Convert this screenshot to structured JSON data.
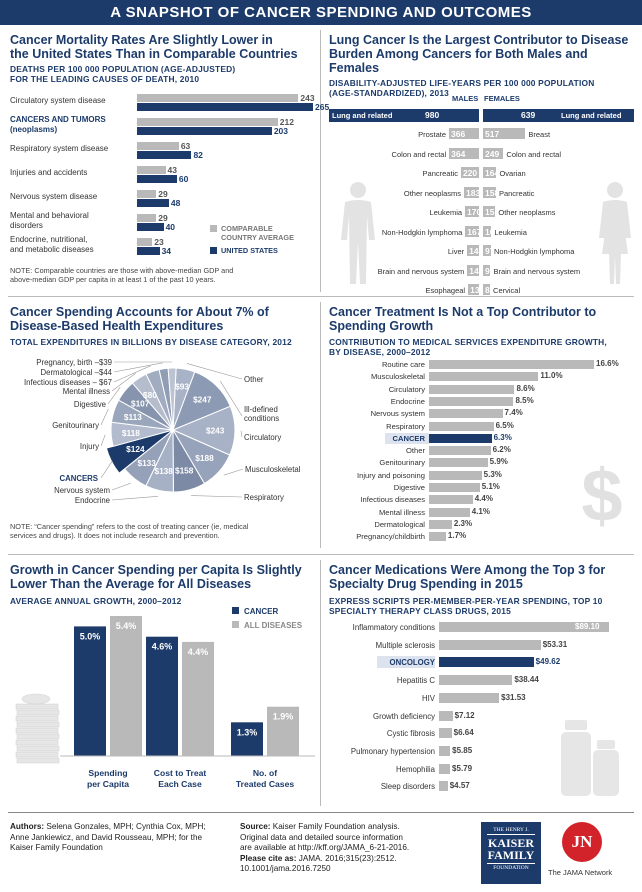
{
  "header": {
    "title": "A SNAPSHOT OF CANCER SPENDING AND OUTCOMES"
  },
  "colors": {
    "navy": "#1c3b6b",
    "gray": "#b9b9b9",
    "panelLine": "#bbbbbb"
  },
  "panel1": {
    "title_line1": "Cancer Mortality Rates Are Slightly Lower in",
    "title_line2": "the United States Than in Comparable Countries",
    "subtitle_line1": "DEATHS PER 100 000 POPULATION (AGE-ADJUSTED)",
    "subtitle_line2": "FOR THE LEADING CAUSES OF DEATH, 2010",
    "note_line1": "NOTE: Comparable countries are those with above-median GDP and",
    "note_line2": "above-median GDP per capita in at least 1 of the past 10 years."
  },
  "panel2": {
    "title_line1": "Lung Cancer Is the Largest Contributor to Disease",
    "title_line2": "Burden Among Cancers for Both Males and Females",
    "subtitle_line1": "DISABILITY-ADJUSTED LIFE-YEARS PER 100 000 POPULATION",
    "subtitle_line2": "(AGE-STANDARDIZED), 2013",
    "males_label": "MALES",
    "females_label": "FEMALES"
  },
  "panel3": {
    "title_line1": "Cancer Spending Accounts for About 7% of",
    "title_line2": "Disease-Based Health Expenditures",
    "subtitle": "TOTAL EXPENDITURES IN BILLIONS BY DISEASE CATEGORY, 2012",
    "note_line1": "NOTE: “Cancer spending” refers to the cost of treating cancer (ie, medical",
    "note_line2": "services and drugs). It does not include research and prevention."
  },
  "panel4": {
    "title_line1": "Cancer Treatment Is Not a Top Contributor to",
    "title_line2": "Spending Growth",
    "subtitle_line1": "CONTRIBUTION TO MEDICAL SERVICES EXPENDITURE GROWTH,",
    "subtitle_line2": "BY DISEASE, 2000–2012"
  },
  "panel5": {
    "title_line1": "Growth in Cancer Spending per Capita Is Slightly",
    "title_line2": "Lower Than the Average for All Diseases",
    "subtitle": "AVERAGE ANNUAL GROWTH, 2000–2012"
  },
  "panel6": {
    "title_line1": "Cancer Medications Were Among the Top 3 for",
    "title_line2": "Specialty Drug Spending in 2015",
    "subtitle_line1": "EXPRESS SCRIPTS PER-MEMBER-PER-YEAR SPENDING, TOP 10",
    "subtitle_line2": "SPECIALTY THERAPY CLASS DRUGS, 2015"
  },
  "footer": {
    "authors_label": "Authors:",
    "authors_text1": " Selena Gonzales, MPH; Cynthia Cox, MPH;",
    "authors_text2": "Anne Jankiewicz, and David Rousseau, MPH; for the",
    "authors_text3": "Kaiser Family Foundation",
    "source_label": "Source:",
    "source_text1": " Kaiser Family Foundation analysis.",
    "source_text2": "Original data and detailed source information",
    "source_text3": "are available at http://kff.org/JAMA_6-21-2016.",
    "cite_label": "Please cite as:",
    "cite_text1": " JAMA. 2016;315(23):2512.",
    "cite_text2": "10.1001/jama.2016.7250",
    "kff_line1": "THE HENRY J.",
    "kff_line2": "KAISER",
    "kff_line3": "FAMILY",
    "kff_line4": "FOUNDATION",
    "jn_logo": "JN",
    "jama_network": "The JAMA Network"
  },
  "chart_data": [
    {
      "id": "mortality",
      "type": "bar",
      "categories": [
        [
          "Circulatory system disease"
        ],
        [
          "CANCERS AND TUMORS",
          "(neoplasms)"
        ],
        [
          "Respiratory system disease"
        ],
        [
          "Injuries and accidents"
        ],
        [
          "Nervous system disease"
        ],
        [
          "Mental and behavioral",
          "disorders"
        ],
        [
          "Endocrine, nutritional,",
          "and  metabolic diseases"
        ]
      ],
      "highlight_index": 1,
      "series": [
        {
          "name": "COMPARABLE COUNTRY AVERAGE",
          "legend_lines": [
            "COMPARABLE",
            "COUNTRY AVERAGE"
          ],
          "color": "#b9b9b9",
          "values": [
            243,
            212,
            63,
            43,
            29,
            29,
            23
          ]
        },
        {
          "name": "UNITED STATES",
          "legend_lines": [
            "UNITED STATES"
          ],
          "color": "#1c3b6b",
          "values": [
            265,
            203,
            82,
            60,
            48,
            40,
            34
          ]
        }
      ],
      "xlim": [
        0,
        265
      ]
    },
    {
      "id": "dalys",
      "type": "bar",
      "header_row": {
        "male_label": "Lung and related",
        "male_value": 980,
        "female_value": 639,
        "female_label": "Lung and related"
      },
      "males": {
        "categories": [
          "Prostate",
          "Colon and rectal",
          "Pancreatic",
          "Other neoplasms",
          "Leukemia",
          "Non-Hodgkin lymphoma",
          "Liver",
          "Brain and nervous system",
          "Esophageal"
        ],
        "values": [
          366,
          364,
          220,
          183,
          170,
          167,
          145,
          143,
          133
        ]
      },
      "females": {
        "categories": [
          "Breast",
          "Colon and rectal",
          "Ovarian",
          "Pancreatic",
          "Other neoplasms",
          "Leukemia",
          "Non-Hodgkin lymphoma",
          "Brain and nervous system",
          "Cervical"
        ],
        "values": [
          517,
          249,
          164,
          158,
          151,
          102,
          97,
          91,
          86
        ]
      }
    },
    {
      "id": "expenditures",
      "type": "pie",
      "slices": [
        {
          "label": "Other",
          "value": 93
        },
        {
          "label": "Ill-defined conditions",
          "value": 247
        },
        {
          "label": "Circulatory",
          "value": 243
        },
        {
          "label": "Musculoskeletal",
          "value": 188
        },
        {
          "label": "Respiratory",
          "value": 158
        },
        {
          "label": "Endocrine",
          "value": 138
        },
        {
          "label": "Nervous system",
          "value": 133
        },
        {
          "label": "CANCERS",
          "value": 124
        },
        {
          "label": "Injury",
          "value": 118
        },
        {
          "label": "Genitourinary",
          "value": 113
        },
        {
          "label": "Digestive",
          "value": 107
        },
        {
          "label": "Mental illness",
          "value": 80
        },
        {
          "label": "Infectious diseases",
          "value": 67
        },
        {
          "label": "Dermatological",
          "value": 44
        },
        {
          "label": "Pregnancy, birth",
          "value": 39
        }
      ],
      "value_labels": [
        "$93",
        "$247",
        "$243",
        "$188",
        "$158",
        "$138",
        "$133",
        "$124",
        "$118",
        "$113",
        "$107",
        "$80"
      ],
      "small_labels": [
        "Pregnancy, birth –$39",
        "Dermatological –$44",
        "Infectious diseases – $67"
      ]
    },
    {
      "id": "growth_contribution",
      "type": "bar",
      "categories": [
        "Routine care",
        "Musculoskeletal",
        "Circulatory",
        "Endocrine",
        "Nervous system",
        "Respiratory",
        "CANCER",
        "Other",
        "Genitourinary",
        "Injury and poisoning",
        "Digestive",
        "Infectious diseases",
        "Mental illness",
        "Dermatological",
        "Pregnancy/childbirth"
      ],
      "values": [
        16.6,
        11.0,
        8.6,
        8.5,
        7.4,
        6.5,
        6.3,
        6.2,
        5.9,
        5.3,
        5.1,
        4.4,
        4.1,
        2.3,
        1.7
      ],
      "value_labels": [
        "16.6%",
        "11.0%",
        "8.6%",
        "8.5%",
        "7.4%",
        "6.5%",
        "6.3%",
        "6.2%",
        "5.9%",
        "5.3%",
        "5.1%",
        "4.4%",
        "4.1%",
        "2.3%",
        "1.7%"
      ],
      "highlight_index": 6,
      "xlim": [
        0,
        16.6
      ]
    },
    {
      "id": "annual_growth",
      "type": "bar",
      "categories": [
        [
          "Spending",
          "per Capita"
        ],
        [
          "Cost to Treat",
          "Each Case"
        ],
        [
          "No. of",
          "Treated Cases"
        ]
      ],
      "series": [
        {
          "name": "CANCER",
          "color": "#1c3b6b",
          "values": [
            5.0,
            4.6,
            1.3
          ],
          "labels": [
            "5.0%",
            "4.6%",
            "1.3%"
          ]
        },
        {
          "name": "ALL DISEASES",
          "color": "#b9b9b9",
          "values": [
            5.4,
            4.4,
            1.9
          ],
          "labels": [
            "5.4%",
            "4.4%",
            "1.9%"
          ]
        }
      ],
      "ylim": [
        0,
        5.4
      ]
    },
    {
      "id": "specialty_drugs",
      "type": "bar",
      "categories": [
        "Inflammatory conditions",
        "Multiple sclerosis",
        "ONCOLOGY",
        "Hepatitis C",
        "HIV",
        "Growth deficiency",
        "Cystic fibrosis",
        "Pulmonary hypertension",
        "Hemophilia",
        "Sleep disorders"
      ],
      "values": [
        89.1,
        53.31,
        49.62,
        38.44,
        31.53,
        7.12,
        6.64,
        5.85,
        5.79,
        4.57
      ],
      "value_labels": [
        "$89.10",
        "$53.31",
        "$49.62",
        "$38.44",
        "$31.53",
        "$7.12",
        "$6.64",
        "$5.85",
        "$5.79",
        "$4.57"
      ],
      "highlight_index": 2,
      "xlim": [
        0,
        89.1
      ]
    }
  ]
}
